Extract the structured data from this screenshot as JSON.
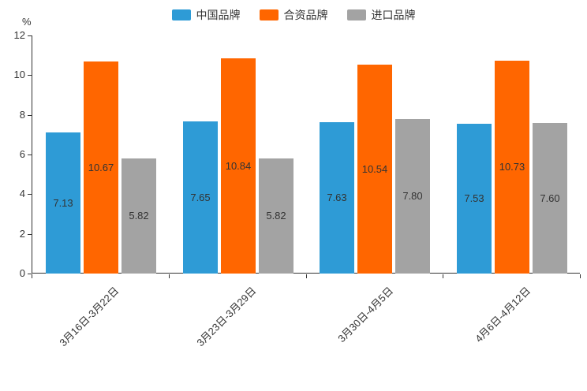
{
  "chart_data": {
    "type": "bar",
    "title": "",
    "xlabel": "",
    "ylabel": "%",
    "ylim": [
      0,
      12
    ],
    "yticks": [
      0,
      2,
      4,
      6,
      8,
      10,
      12
    ],
    "grid": false,
    "legend_position": "top-center",
    "value_labels": "inside-center",
    "categories": [
      "3月16日-3月22日",
      "3月23日-3月29日",
      "3月30日-4月5日",
      "4月6日-4月12日"
    ],
    "series": [
      {
        "name": "中国品牌",
        "color": "#2E9BD6",
        "values": [
          7.13,
          7.65,
          7.63,
          7.53
        ]
      },
      {
        "name": "合资品牌",
        "color": "#FF6600",
        "values": [
          10.67,
          10.84,
          10.54,
          10.73
        ]
      },
      {
        "name": "进口品牌",
        "color": "#A3A3A3",
        "values": [
          5.82,
          5.82,
          7.8,
          7.6
        ]
      }
    ]
  }
}
